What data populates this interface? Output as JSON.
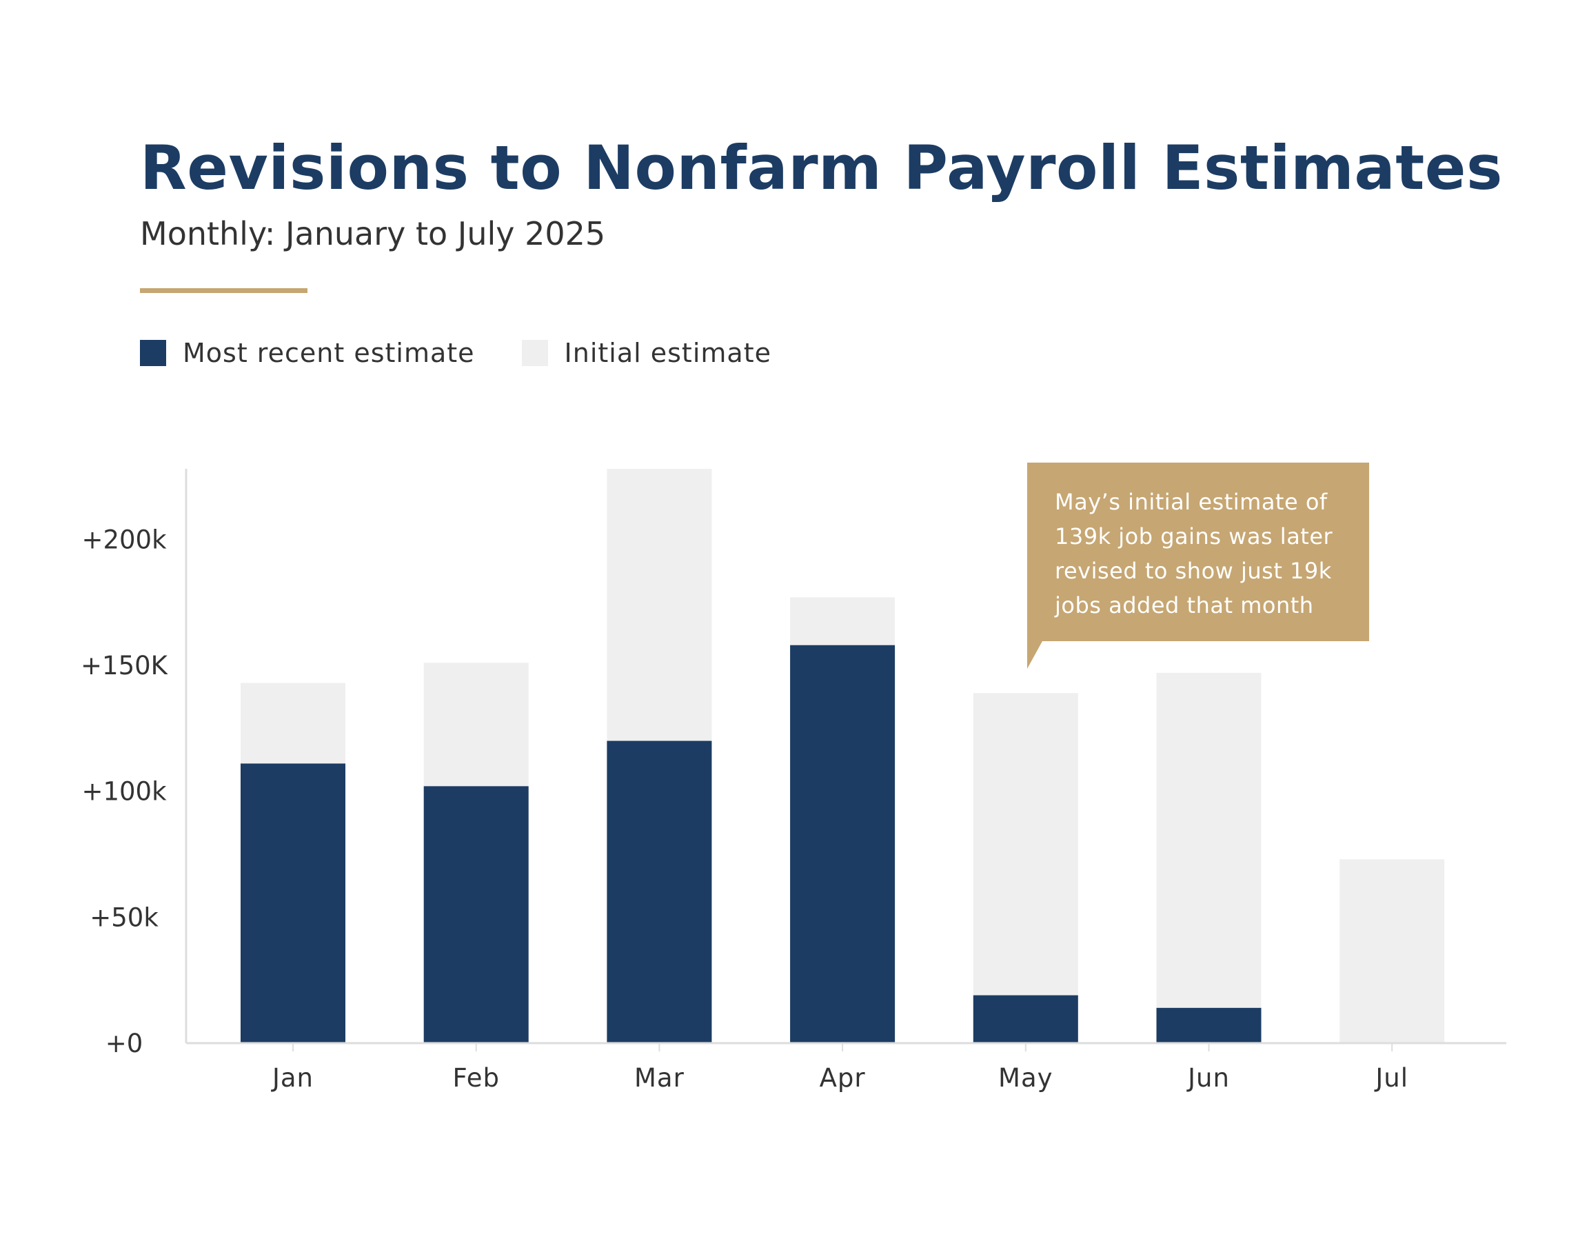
{
  "colors": {
    "title": "#1c3c63",
    "recent": "#1c3c63",
    "initial": "#efefef",
    "accent": "#c6a672",
    "axis": "#dddddd",
    "text": "#333333"
  },
  "legend": {
    "items": [
      {
        "label": "Most recent estimate",
        "color": "#1c3c63"
      },
      {
        "label": "Initial estimate",
        "color": "#efefef"
      }
    ]
  },
  "callout": {
    "lines": [
      "May’s initial estimate of",
      "139k job gains was later",
      "revised to show just 19k",
      "jobs added that month"
    ]
  },
  "chart_data": {
    "type": "bar",
    "title": "Revisions to Nonfarm Payroll Estimates",
    "subtitle": "Monthly: January to July 2025",
    "categories": [
      "Jan",
      "Feb",
      "Mar",
      "Apr",
      "May",
      "Jun",
      "Jul"
    ],
    "series": [
      {
        "name": "Initial estimate",
        "values": [
          143,
          151,
          228,
          177,
          139,
          147,
          73
        ]
      },
      {
        "name": "Most recent estimate",
        "values": [
          111,
          102,
          120,
          158,
          19,
          14,
          null
        ]
      }
    ],
    "y_ticks": [
      {
        "value": 0,
        "label": "+0"
      },
      {
        "value": 50,
        "label": "+50k"
      },
      {
        "value": 100,
        "label": "+100k"
      },
      {
        "value": 150,
        "label": "+150K"
      },
      {
        "value": 200,
        "label": "+200k"
      }
    ],
    "ylim": [
      0,
      228
    ],
    "overlay": true,
    "grid": false,
    "legend_position": "top-left"
  }
}
